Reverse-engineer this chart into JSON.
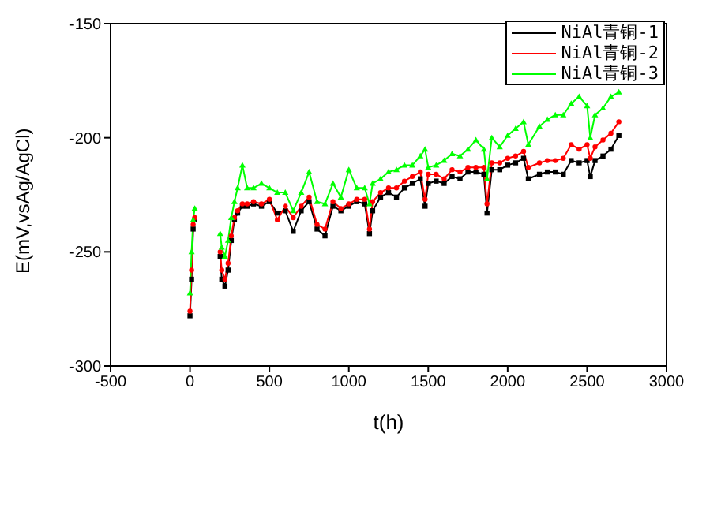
{
  "chart_data": {
    "type": "line",
    "xlabel": "t(h)",
    "ylabel": "E(mV,vsAg/AgCl)",
    "xlim": [
      -500,
      3000
    ],
    "ylim": [
      -300,
      -150
    ],
    "xticks": [
      -500,
      0,
      500,
      1000,
      1500,
      2000,
      2500,
      3000
    ],
    "yticks": [
      -300,
      -250,
      -200,
      -150
    ],
    "grid": false,
    "legend": "top right",
    "line_style": "solid",
    "x": [
      0,
      10,
      20,
      30,
      100,
      190,
      200,
      220,
      240,
      260,
      280,
      300,
      330,
      360,
      400,
      450,
      500,
      550,
      600,
      650,
      700,
      750,
      800,
      850,
      900,
      950,
      1000,
      1050,
      1100,
      1130,
      1150,
      1200,
      1250,
      1300,
      1350,
      1400,
      1450,
      1480,
      1500,
      1550,
      1600,
      1650,
      1700,
      1750,
      1800,
      1850,
      1870,
      1900,
      1950,
      2000,
      2050,
      2100,
      2130,
      2200,
      2250,
      2300,
      2350,
      2400,
      2450,
      2500,
      2520,
      2550,
      2600,
      2650,
      2700
    ],
    "series": [
      {
        "name": "NiAl青铜-1",
        "color": "#000000",
        "marker": "square",
        "values": [
          -278,
          -262,
          -240,
          -236,
          null,
          -252,
          -262,
          -265,
          -258,
          -245,
          -236,
          -233,
          -230,
          -230,
          -229,
          -230,
          -228,
          -233,
          -232,
          -241,
          -232,
          -228,
          -240,
          -243,
          -230,
          -232,
          -230,
          -228,
          -229,
          -242,
          -232,
          -226,
          -224,
          -226,
          -222,
          -220,
          -218,
          -230,
          -220,
          -219,
          -220,
          -217,
          -218,
          -215,
          -215,
          -216,
          -233,
          -214,
          -214,
          -212,
          -211,
          -209,
          -218,
          -216,
          -215,
          -215,
          -216,
          -210,
          -211,
          -210,
          -217,
          -210,
          -208,
          -205,
          -199
        ]
      },
      {
        "name": "NiAl青铜-2",
        "color": "#ff0000",
        "marker": "circle",
        "values": [
          -276,
          -258,
          -238,
          -235,
          null,
          -250,
          -258,
          -262,
          -255,
          -243,
          -235,
          -232,
          -229,
          -229,
          -228,
          -229,
          -227,
          -236,
          -230,
          -235,
          -230,
          -226,
          -238,
          -240,
          -228,
          -231,
          -229,
          -227,
          -227,
          -240,
          -228,
          -224,
          -222,
          -222,
          -219,
          -217,
          -215,
          -227,
          -216,
          -216,
          -218,
          -214,
          -215,
          -213,
          -213,
          -213,
          -229,
          -211,
          -211,
          -209,
          -208,
          -206,
          -213,
          -211,
          -210,
          -210,
          -209,
          -203,
          -205,
          -203,
          -209,
          -204,
          -201,
          -198,
          -193
        ]
      },
      {
        "name": "NiAl青铜-3",
        "color": "#00ff00",
        "marker": "triangle",
        "values": [
          -268,
          -250,
          -236,
          -231,
          null,
          -242,
          -248,
          -252,
          -245,
          -235,
          -228,
          -222,
          -212,
          -222,
          -222,
          -220,
          -222,
          -224,
          -224,
          -232,
          -224,
          -215,
          -228,
          -229,
          -220,
          -226,
          -214,
          -222,
          -222,
          -229,
          -220,
          -218,
          -215,
          -214,
          -212,
          -212,
          -208,
          -205,
          -213,
          -212,
          -210,
          -207,
          -208,
          -205,
          -201,
          -205,
          -218,
          -200,
          -204,
          -199,
          -196,
          -193,
          -203,
          -195,
          -192,
          -190,
          -190,
          -185,
          -182,
          -186,
          -200,
          -190,
          -187,
          -182,
          -180
        ]
      }
    ]
  }
}
